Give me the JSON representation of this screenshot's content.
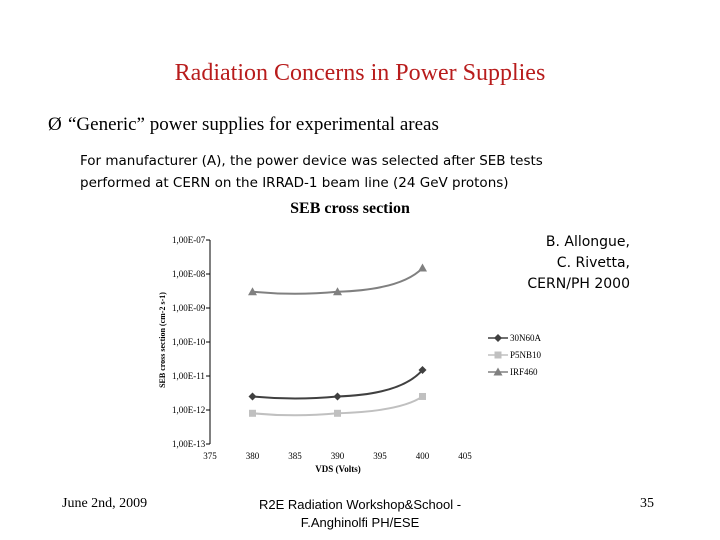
{
  "slide": {
    "title": "Radiation Concerns in Power Supplies",
    "bullet_icon": "arrow-bullet-icon",
    "bullet_glyph": "Ø",
    "bullet_text": "“Generic” power supplies for experimental areas",
    "description_line1": "For manufacturer (A), the power device was selected after SEB tests",
    "description_line2": "performed at CERN on the IRRAD-1 beam line (24 GeV protons)",
    "credit": [
      "B. Allongue,",
      "C. Rivetta,",
      "CERN/PH 2000"
    ],
    "footer_left": "June 2nd, 2009",
    "footer_center_line1": "R2E Radiation Workshop&School -",
    "footer_center_line2": "F.Anghinolfi PH/ESE",
    "page_number": "35"
  },
  "chart_data": {
    "type": "line",
    "title": "SEB cross section",
    "xlabel": "VDS (Volts)",
    "ylabel": "SEB cross section (cm-2 s-1)",
    "x_ticks": [
      "375",
      "380",
      "385",
      "390",
      "395",
      "400",
      "405"
    ],
    "y_ticks": [
      "1,00E-07",
      "1,00E-08",
      "1,00E-09",
      "1,00E-10",
      "1,00E-11",
      "1,00E-12",
      "1,00E-13"
    ],
    "xlim": [
      375,
      405
    ],
    "ylim": [
      1e-13,
      1e-07
    ],
    "y_scale": "log",
    "legend_position": "right",
    "series": [
      {
        "name": "30N60A",
        "color": "#404040",
        "marker": "diamond",
        "x": [
          380,
          390,
          400
        ],
        "y": [
          2.5e-12,
          2.5e-12,
          1.5e-11
        ]
      },
      {
        "name": "P5NB10",
        "color": "#c0c0c0",
        "marker": "square",
        "x": [
          380,
          390,
          400
        ],
        "y": [
          8e-13,
          8e-13,
          2.5e-12
        ]
      },
      {
        "name": "IRF460",
        "color": "#808080",
        "marker": "triangle",
        "x": [
          380,
          390,
          400
        ],
        "y": [
          3e-09,
          3e-09,
          1.5e-08
        ]
      }
    ]
  }
}
